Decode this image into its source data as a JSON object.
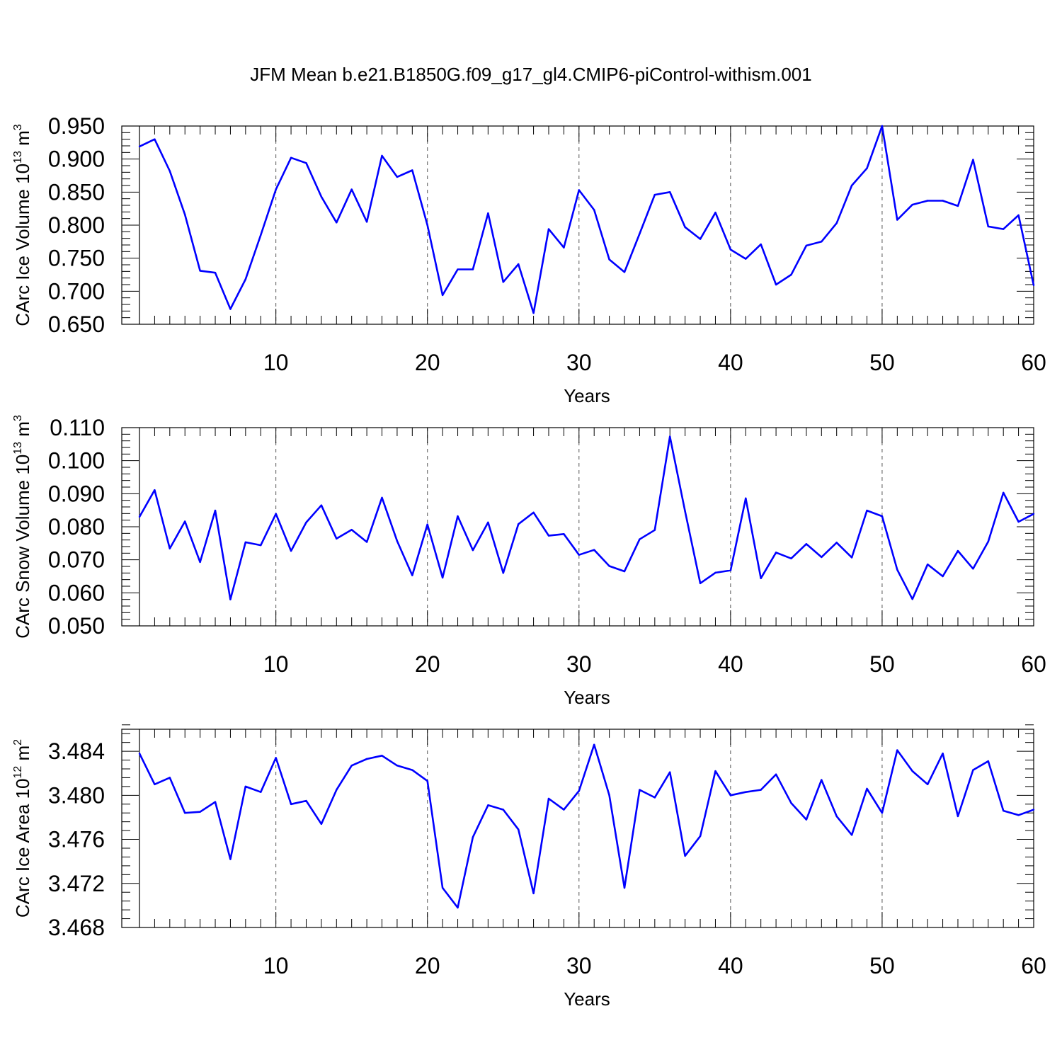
{
  "title": "JFM Mean b.e21.B1850G.f09_g17_gl4.CMIP6-piControl-withism.001",
  "chart_data": [
    {
      "type": "line",
      "xlabel": "Years",
      "ylabel": "CArc Ice Volume 10",
      "ylabel_exp": "13",
      "ylabel_unit": " m",
      "ylabel_unit_exp": "3",
      "xlim": [
        1,
        60
      ],
      "ylim": [
        0.65,
        0.95
      ],
      "xticks": [
        10,
        20,
        30,
        40,
        50,
        60
      ],
      "yticks": [
        "0.650",
        "0.700",
        "0.750",
        "0.800",
        "0.850",
        "0.900",
        "0.950"
      ],
      "yticks_values": [
        0.65,
        0.7,
        0.75,
        0.8,
        0.85,
        0.9,
        0.95
      ],
      "color": "#0000ff",
      "x": [
        1,
        2,
        3,
        4,
        5,
        6,
        7,
        8,
        9,
        10,
        11,
        12,
        13,
        14,
        15,
        16,
        17,
        18,
        19,
        20,
        21,
        22,
        23,
        24,
        25,
        26,
        27,
        28,
        29,
        30,
        31,
        32,
        33,
        34,
        35,
        36,
        37,
        38,
        39,
        40,
        41,
        42,
        43,
        44,
        45,
        46,
        47,
        48,
        49,
        50,
        51,
        52,
        53,
        54,
        55,
        56,
        57,
        58,
        59,
        60
      ],
      "y": [
        0.919,
        0.93,
        0.882,
        0.816,
        0.731,
        0.728,
        0.673,
        0.718,
        0.785,
        0.854,
        0.902,
        0.894,
        0.843,
        0.804,
        0.854,
        0.805,
        0.905,
        0.873,
        0.883,
        0.8,
        0.694,
        0.733,
        0.733,
        0.818,
        0.714,
        0.741,
        0.667,
        0.794,
        0.766,
        0.853,
        0.823,
        0.748,
        0.729,
        0.787,
        0.846,
        0.85,
        0.797,
        0.779,
        0.819,
        0.763,
        0.749,
        0.771,
        0.71,
        0.725,
        0.769,
        0.775,
        0.803,
        0.86,
        0.886,
        0.95,
        0.808,
        0.831,
        0.837,
        0.837,
        0.829,
        0.899,
        0.798,
        0.794,
        0.815,
        0.709
      ]
    },
    {
      "type": "line",
      "xlabel": "Years",
      "ylabel": "CArc Snow Volume 10",
      "ylabel_exp": "13",
      "ylabel_unit": " m",
      "ylabel_unit_exp": "3",
      "xlim": [
        1,
        60
      ],
      "ylim": [
        0.05,
        0.11
      ],
      "xticks": [
        10,
        20,
        30,
        40,
        50,
        60
      ],
      "yticks": [
        "0.050",
        "0.060",
        "0.070",
        "0.080",
        "0.090",
        "0.100",
        "0.110"
      ],
      "yticks_values": [
        0.05,
        0.06,
        0.07,
        0.08,
        0.09,
        0.1,
        0.11
      ],
      "color": "#0000ff",
      "x": [
        1,
        2,
        3,
        4,
        5,
        6,
        7,
        8,
        9,
        10,
        11,
        12,
        13,
        14,
        15,
        16,
        17,
        18,
        19,
        20,
        21,
        22,
        23,
        24,
        25,
        26,
        27,
        28,
        29,
        30,
        31,
        32,
        33,
        34,
        35,
        36,
        37,
        38,
        39,
        40,
        41,
        42,
        43,
        44,
        45,
        46,
        47,
        48,
        49,
        50,
        51,
        52,
        53,
        54,
        55,
        56,
        57,
        58,
        59,
        60
      ],
      "y": [
        0.083,
        0.0911,
        0.0734,
        0.0816,
        0.0693,
        0.0849,
        0.058,
        0.0753,
        0.0744,
        0.0839,
        0.0727,
        0.0813,
        0.0865,
        0.0764,
        0.0791,
        0.0754,
        0.0888,
        0.0757,
        0.0653,
        0.0807,
        0.0646,
        0.0832,
        0.0729,
        0.0813,
        0.066,
        0.0808,
        0.0843,
        0.0773,
        0.0778,
        0.0715,
        0.073,
        0.0681,
        0.0665,
        0.0762,
        0.079,
        0.1073,
        0.0847,
        0.0629,
        0.0661,
        0.0668,
        0.0886,
        0.0644,
        0.0722,
        0.0704,
        0.0748,
        0.0708,
        0.0752,
        0.0707,
        0.0849,
        0.0832,
        0.067,
        0.0581,
        0.0686,
        0.065,
        0.0727,
        0.0673,
        0.0755,
        0.0903,
        0.0815,
        0.0839
      ]
    },
    {
      "type": "line",
      "xlabel": "Years",
      "ylabel": "CArc Ice Area 10",
      "ylabel_exp": "12",
      "ylabel_unit": " m",
      "ylabel_unit_exp": "2",
      "xlim": [
        1,
        60
      ],
      "ylim": [
        3.468,
        3.486
      ],
      "xticks": [
        10,
        20,
        30,
        40,
        50,
        60
      ],
      "yticks": [
        "3.468",
        "3.472",
        "3.476",
        "3.480",
        "3.484"
      ],
      "yticks_values": [
        3.468,
        3.472,
        3.476,
        3.48,
        3.484
      ],
      "color": "#0000ff",
      "x": [
        1,
        2,
        3,
        4,
        5,
        6,
        7,
        8,
        9,
        10,
        11,
        12,
        13,
        14,
        15,
        16,
        17,
        18,
        19,
        20,
        21,
        22,
        23,
        24,
        25,
        26,
        27,
        28,
        29,
        30,
        31,
        32,
        33,
        34,
        35,
        36,
        37,
        38,
        39,
        40,
        41,
        42,
        43,
        44,
        45,
        46,
        47,
        48,
        49,
        50,
        51,
        52,
        53,
        54,
        55,
        56,
        57,
        58,
        59,
        60
      ],
      "y": [
        3.4838,
        3.481,
        3.4816,
        3.4784,
        3.4785,
        3.4794,
        3.4742,
        3.4808,
        3.4803,
        3.4834,
        3.4792,
        3.4795,
        3.4774,
        3.4805,
        3.4827,
        3.4833,
        3.4836,
        3.4827,
        3.4823,
        3.4813,
        3.4716,
        3.4698,
        3.4762,
        3.4791,
        3.4787,
        3.4769,
        3.4711,
        3.4797,
        3.4787,
        3.4804,
        3.4846,
        3.48,
        3.4716,
        3.4805,
        3.4798,
        3.4821,
        3.4745,
        3.4763,
        3.4822,
        3.48,
        3.4803,
        3.4805,
        3.4819,
        3.4793,
        3.4778,
        3.4814,
        3.4781,
        3.4764,
        3.4806,
        3.4784,
        3.4841,
        3.4822,
        3.481,
        3.4838,
        3.4781,
        3.4823,
        3.4831,
        3.4786,
        3.4782,
        3.4787
      ]
    }
  ]
}
